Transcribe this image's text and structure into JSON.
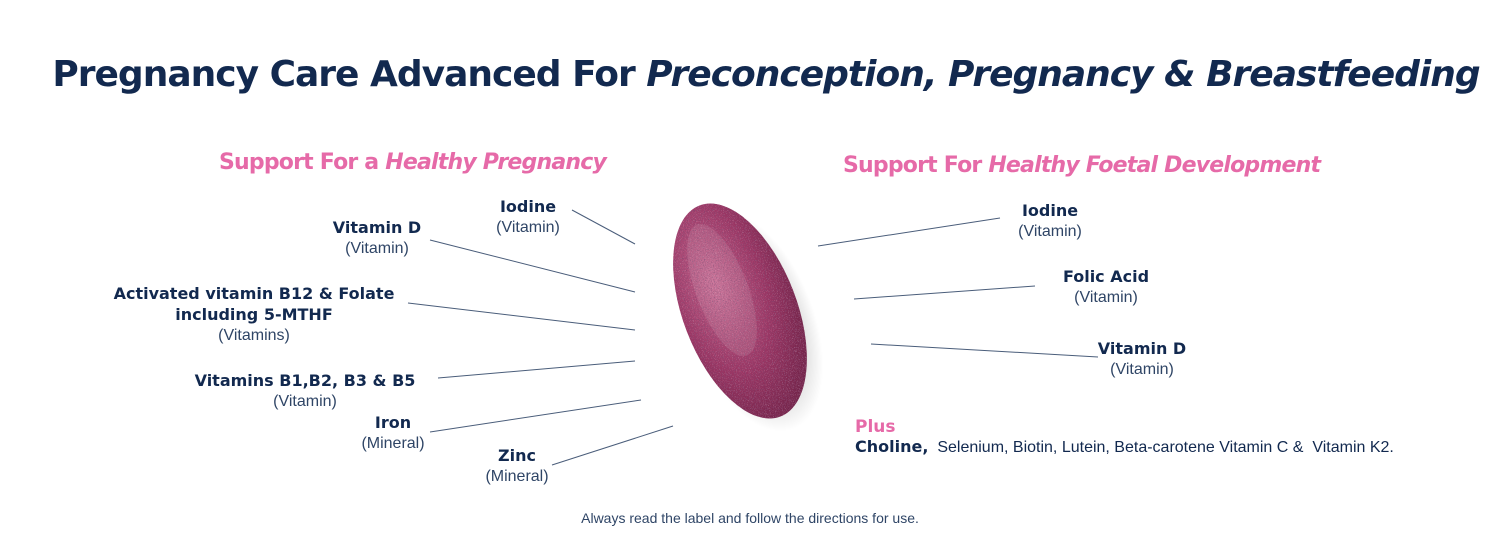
{
  "title": {
    "main": "Pregnancy Care Advanced For ",
    "emphasis": "Preconception, Pregnancy & Breastfeeding"
  },
  "left_section": {
    "prefix": "Support For a ",
    "emphasis": "Healthy Pregnancy",
    "items": [
      {
        "name": "Iodine",
        "category": "(Vitamin)"
      },
      {
        "name": "Vitamin D",
        "category": "(Vitamin)"
      },
      {
        "name": "Activated vitamin B12 & Folate",
        "name2": "including 5-MTHF",
        "category": "(Vitamins)"
      },
      {
        "name": "Vitamins B1,B2, B3 & B5",
        "category": "(Vitamin)"
      },
      {
        "name": "Iron",
        "category": "(Mineral)"
      },
      {
        "name": "Zinc",
        "category": "(Mineral)"
      }
    ]
  },
  "right_section": {
    "prefix": "Support For ",
    "emphasis": "Healthy Foetal Development",
    "items": [
      {
        "name": "Iodine",
        "category": "(Vitamin)"
      },
      {
        "name": "Folic Acid",
        "category": "(Vitamin)"
      },
      {
        "name": "Vitamin D",
        "category": "(Vitamin)"
      }
    ]
  },
  "plus": {
    "label": "Plus",
    "lead": "Choline,",
    "rest": "  Selenium, Biotin, Lutein, Beta-carotene Vitamin C &  Vitamin K2."
  },
  "footer": "Always read the label and follow the directions for use.",
  "colors": {
    "navy": "#12294f",
    "pink": "#e66aa8",
    "tablet": "#9a3563"
  },
  "image": "pink-speckled-tablet"
}
